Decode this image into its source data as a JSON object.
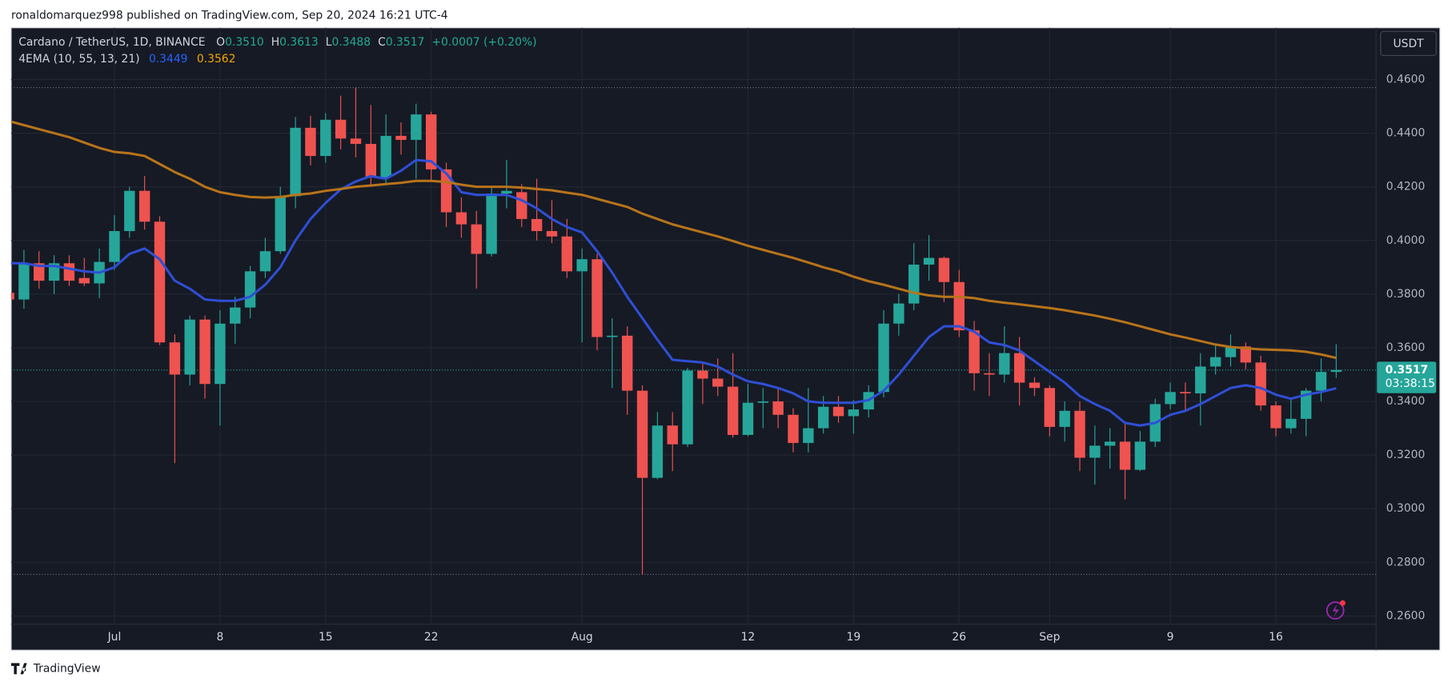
{
  "page": {
    "byline": "ronaldomarquez998 published on TradingView.com, Sep 20, 2024 16:21 UTC-4",
    "brand": "TradingView",
    "currency": "USDT"
  },
  "header": {
    "symbol": "Cardano / TetherUS, 1D, BINANCE",
    "o_label": "O",
    "o": "0.3510",
    "h_label": "H",
    "h": "0.3613",
    "l_label": "L",
    "l": "0.3488",
    "c_label": "C",
    "c": "0.3517",
    "change": "+0.0007 (+0.20%)",
    "indicator_name": "4EMA (10, 55, 13, 21)"
  },
  "chart_data": {
    "type": "candlestick",
    "categories": [
      "Jun 24",
      "Jun 25",
      "Jun 26",
      "Jun 27",
      "Jun 28",
      "Jun 29",
      "Jun 30",
      "Jul 1",
      "Jul 2",
      "Jul 3",
      "Jul 4",
      "Jul 5",
      "Jul 6",
      "Jul 7",
      "Jul 8",
      "Jul 9",
      "Jul 10",
      "Jul 11",
      "Jul 12",
      "Jul 13",
      "Jul 14",
      "Jul 15",
      "Jul 16",
      "Jul 17",
      "Jul 18",
      "Jul 19",
      "Jul 20",
      "Jul 21",
      "Jul 22",
      "Jul 23",
      "Jul 24",
      "Jul 25",
      "Jul 26",
      "Jul 27",
      "Jul 28",
      "Jul 29",
      "Jul 30",
      "Jul 31",
      "Aug 1",
      "Aug 2",
      "Aug 3",
      "Aug 4",
      "Aug 5",
      "Aug 6",
      "Aug 7",
      "Aug 8",
      "Aug 9",
      "Aug 10",
      "Aug 11",
      "Aug 12",
      "Aug 13",
      "Aug 14",
      "Aug 15",
      "Aug 16",
      "Aug 17",
      "Aug 18",
      "Aug 19",
      "Aug 20",
      "Aug 21",
      "Aug 22",
      "Aug 23",
      "Aug 24",
      "Aug 25",
      "Aug 26",
      "Aug 27",
      "Aug 28",
      "Aug 29",
      "Aug 30",
      "Aug 31",
      "Sep 1",
      "Sep 2",
      "Sep 3",
      "Sep 4",
      "Sep 5",
      "Sep 6",
      "Sep 7",
      "Sep 8",
      "Sep 9",
      "Sep 10",
      "Sep 11",
      "Sep 12",
      "Sep 13",
      "Sep 14",
      "Sep 15",
      "Sep 16",
      "Sep 17",
      "Sep 18",
      "Sep 19",
      "Sep 20"
    ],
    "open": [
      0.3805,
      0.378,
      0.3915,
      0.385,
      0.3915,
      0.386,
      0.384,
      0.392,
      0.4035,
      0.4185,
      0.407,
      0.362,
      0.35,
      0.3705,
      0.3465,
      0.369,
      0.375,
      0.3885,
      0.396,
      0.4165,
      0.442,
      0.4315,
      0.445,
      0.438,
      0.436,
      0.4235,
      0.439,
      0.4375,
      0.447,
      0.4265,
      0.4105,
      0.406,
      0.395,
      0.4175,
      0.418,
      0.408,
      0.4035,
      0.4015,
      0.3885,
      0.393,
      0.364,
      0.3645,
      0.344,
      0.3115,
      0.331,
      0.324,
      0.3515,
      0.3485,
      0.3455,
      0.3275,
      0.3395,
      0.34,
      0.335,
      0.3245,
      0.33,
      0.338,
      0.3345,
      0.337,
      0.3435,
      0.369,
      0.3765,
      0.391,
      0.3935,
      0.3845,
      0.3665,
      0.3505,
      0.35,
      0.358,
      0.347,
      0.345,
      0.3305,
      0.3365,
      0.319,
      0.3235,
      0.325,
      0.3145,
      0.325,
      0.339,
      0.3435,
      0.343,
      0.353,
      0.3565,
      0.3605,
      0.3545,
      0.3385,
      0.33,
      0.3335,
      0.344,
      0.351
    ],
    "high": [
      0.382,
      0.3965,
      0.396,
      0.3945,
      0.3945,
      0.3935,
      0.397,
      0.4095,
      0.42,
      0.424,
      0.409,
      0.365,
      0.372,
      0.372,
      0.374,
      0.379,
      0.3905,
      0.401,
      0.42,
      0.446,
      0.4465,
      0.4475,
      0.454,
      0.457,
      0.4505,
      0.447,
      0.444,
      0.451,
      0.448,
      0.429,
      0.416,
      0.411,
      0.42,
      0.43,
      0.421,
      0.423,
      0.415,
      0.408,
      0.397,
      0.395,
      0.371,
      0.368,
      0.346,
      0.336,
      0.336,
      0.3525,
      0.354,
      0.356,
      0.358,
      0.3465,
      0.345,
      0.345,
      0.3375,
      0.345,
      0.342,
      0.342,
      0.3405,
      0.346,
      0.374,
      0.38,
      0.399,
      0.402,
      0.394,
      0.389,
      0.37,
      0.358,
      0.368,
      0.364,
      0.349,
      0.346,
      0.34,
      0.34,
      0.331,
      0.33,
      0.3315,
      0.329,
      0.341,
      0.347,
      0.347,
      0.358,
      0.361,
      0.365,
      0.362,
      0.357,
      0.34,
      0.341,
      0.345,
      0.356,
      0.3613
    ],
    "low": [
      0.377,
      0.3745,
      0.382,
      0.38,
      0.383,
      0.383,
      0.3785,
      0.389,
      0.401,
      0.404,
      0.361,
      0.317,
      0.346,
      0.341,
      0.331,
      0.3615,
      0.371,
      0.386,
      0.395,
      0.412,
      0.428,
      0.429,
      0.434,
      0.431,
      0.42,
      0.421,
      0.432,
      0.423,
      0.422,
      0.405,
      0.401,
      0.382,
      0.394,
      0.412,
      0.405,
      0.4,
      0.399,
      0.386,
      0.362,
      0.359,
      0.345,
      0.335,
      0.2755,
      0.311,
      0.314,
      0.323,
      0.339,
      0.342,
      0.3265,
      0.327,
      0.33,
      0.33,
      0.321,
      0.321,
      0.328,
      0.332,
      0.328,
      0.334,
      0.3415,
      0.3645,
      0.374,
      0.385,
      0.377,
      0.364,
      0.344,
      0.342,
      0.347,
      0.3385,
      0.342,
      0.327,
      0.325,
      0.314,
      0.309,
      0.315,
      0.3035,
      0.314,
      0.323,
      0.337,
      0.336,
      0.331,
      0.35,
      0.353,
      0.352,
      0.3365,
      0.327,
      0.328,
      0.327,
      0.34,
      0.3488
    ],
    "close": [
      0.378,
      0.3915,
      0.385,
      0.3915,
      0.385,
      0.384,
      0.392,
      0.4035,
      0.4185,
      0.407,
      0.362,
      0.35,
      0.3705,
      0.3465,
      0.369,
      0.375,
      0.3885,
      0.396,
      0.4165,
      0.442,
      0.4315,
      0.445,
      0.438,
      0.436,
      0.4235,
      0.439,
      0.4375,
      0.447,
      0.4265,
      0.4105,
      0.406,
      0.395,
      0.4175,
      0.4185,
      0.408,
      0.4035,
      0.4015,
      0.3885,
      0.393,
      0.364,
      0.3645,
      0.344,
      0.3115,
      0.331,
      0.324,
      0.3515,
      0.3485,
      0.3455,
      0.3275,
      0.3395,
      0.34,
      0.335,
      0.3245,
      0.33,
      0.338,
      0.3345,
      0.337,
      0.3435,
      0.369,
      0.3765,
      0.391,
      0.3935,
      0.3845,
      0.3665,
      0.3505,
      0.35,
      0.358,
      0.347,
      0.345,
      0.3305,
      0.3365,
      0.319,
      0.3235,
      0.325,
      0.3145,
      0.325,
      0.339,
      0.3435,
      0.343,
      0.353,
      0.3565,
      0.3605,
      0.3545,
      0.3385,
      0.33,
      0.3335,
      0.344,
      0.351,
      0.3517
    ],
    "up_color": "#26a69a",
    "down_color": "#ef5350",
    "indicators": [
      {
        "color": "#2f4fd6",
        "label_color": "#2962ff",
        "value_label": "0.3449",
        "values": [
          0.3915,
          0.3915,
          0.3905,
          0.3905,
          0.3895,
          0.3885,
          0.388,
          0.39,
          0.395,
          0.397,
          0.393,
          0.385,
          0.382,
          0.378,
          0.3775,
          0.3775,
          0.379,
          0.3835,
          0.39,
          0.4,
          0.408,
          0.414,
          0.419,
          0.422,
          0.424,
          0.423,
          0.426,
          0.43,
          0.4295,
          0.425,
          0.418,
          0.417,
          0.417,
          0.417,
          0.415,
          0.412,
          0.408,
          0.405,
          0.403,
          0.396,
          0.388,
          0.379,
          0.371,
          0.363,
          0.3555,
          0.355,
          0.3545,
          0.353,
          0.35,
          0.3475,
          0.3465,
          0.345,
          0.343,
          0.34,
          0.3395,
          0.3395,
          0.3395,
          0.3405,
          0.344,
          0.35,
          0.357,
          0.364,
          0.368,
          0.368,
          0.366,
          0.362,
          0.361,
          0.359,
          0.355,
          0.351,
          0.347,
          0.342,
          0.339,
          0.3365,
          0.332,
          0.331,
          0.332,
          0.335,
          0.3365,
          0.339,
          0.342,
          0.345,
          0.346,
          0.345,
          0.3425,
          0.341,
          0.3425,
          0.3435,
          0.3449
        ]
      },
      {
        "color": "#b8741a",
        "label_color": "#f7a600",
        "value_label": "0.3562",
        "values": [
          0.4445,
          0.443,
          0.4415,
          0.44,
          0.4385,
          0.4365,
          0.4345,
          0.433,
          0.4325,
          0.4315,
          0.4285,
          0.4255,
          0.423,
          0.42,
          0.418,
          0.417,
          0.4162,
          0.416,
          0.4162,
          0.417,
          0.4175,
          0.4185,
          0.4192,
          0.42,
          0.4205,
          0.421,
          0.4215,
          0.4222,
          0.4222,
          0.4218,
          0.4208,
          0.42,
          0.42,
          0.42,
          0.4197,
          0.4192,
          0.4187,
          0.4178,
          0.417,
          0.4155,
          0.414,
          0.4125,
          0.41,
          0.408,
          0.406,
          0.4045,
          0.403,
          0.4015,
          0.3998,
          0.398,
          0.3965,
          0.395,
          0.3935,
          0.3918,
          0.39,
          0.3885,
          0.3865,
          0.3848,
          0.3835,
          0.382,
          0.3805,
          0.3795,
          0.379,
          0.379,
          0.3785,
          0.3775,
          0.3768,
          0.3762,
          0.3755,
          0.3748,
          0.374,
          0.373,
          0.372,
          0.3708,
          0.3695,
          0.368,
          0.3665,
          0.365,
          0.3638,
          0.3625,
          0.3612,
          0.3603,
          0.3598,
          0.3594,
          0.3592,
          0.359,
          0.3585,
          0.3575,
          0.3562
        ]
      }
    ],
    "price_tag": {
      "price": "0.3517",
      "countdown": "03:38:15"
    },
    "ylim": [
      0.2569,
      0.4793
    ],
    "yticks": [
      {
        "value": 0.26,
        "label": "0.2600"
      },
      {
        "value": 0.28,
        "label": "0.2800"
      },
      {
        "value": 0.3,
        "label": "0.3000"
      },
      {
        "value": 0.32,
        "label": "0.3200"
      },
      {
        "value": 0.34,
        "label": "0.3400"
      },
      {
        "value": 0.36,
        "label": "0.3600"
      },
      {
        "value": 0.38,
        "label": "0.3800"
      },
      {
        "value": 0.4,
        "label": "0.4000"
      },
      {
        "value": 0.42,
        "label": "0.4200"
      },
      {
        "value": 0.44,
        "label": "0.4400"
      },
      {
        "value": 0.46,
        "label": "0.4600"
      }
    ],
    "xticks": [
      {
        "value": "Jul 1",
        "label": "Jul"
      },
      {
        "value": "Jul 8",
        "label": "8"
      },
      {
        "value": "Jul 15",
        "label": "15"
      },
      {
        "value": "Jul 22",
        "label": "22"
      },
      {
        "value": "Aug 1",
        "label": "Aug"
      },
      {
        "value": "Aug 12",
        "label": "12"
      },
      {
        "value": "Aug 19",
        "label": "19"
      },
      {
        "value": "Aug 26",
        "label": "26"
      },
      {
        "value": "Sep 1",
        "label": "Sep"
      },
      {
        "value": "Sep 9",
        "label": "9"
      },
      {
        "value": "Sep 16",
        "label": "16"
      }
    ],
    "grid": true
  }
}
